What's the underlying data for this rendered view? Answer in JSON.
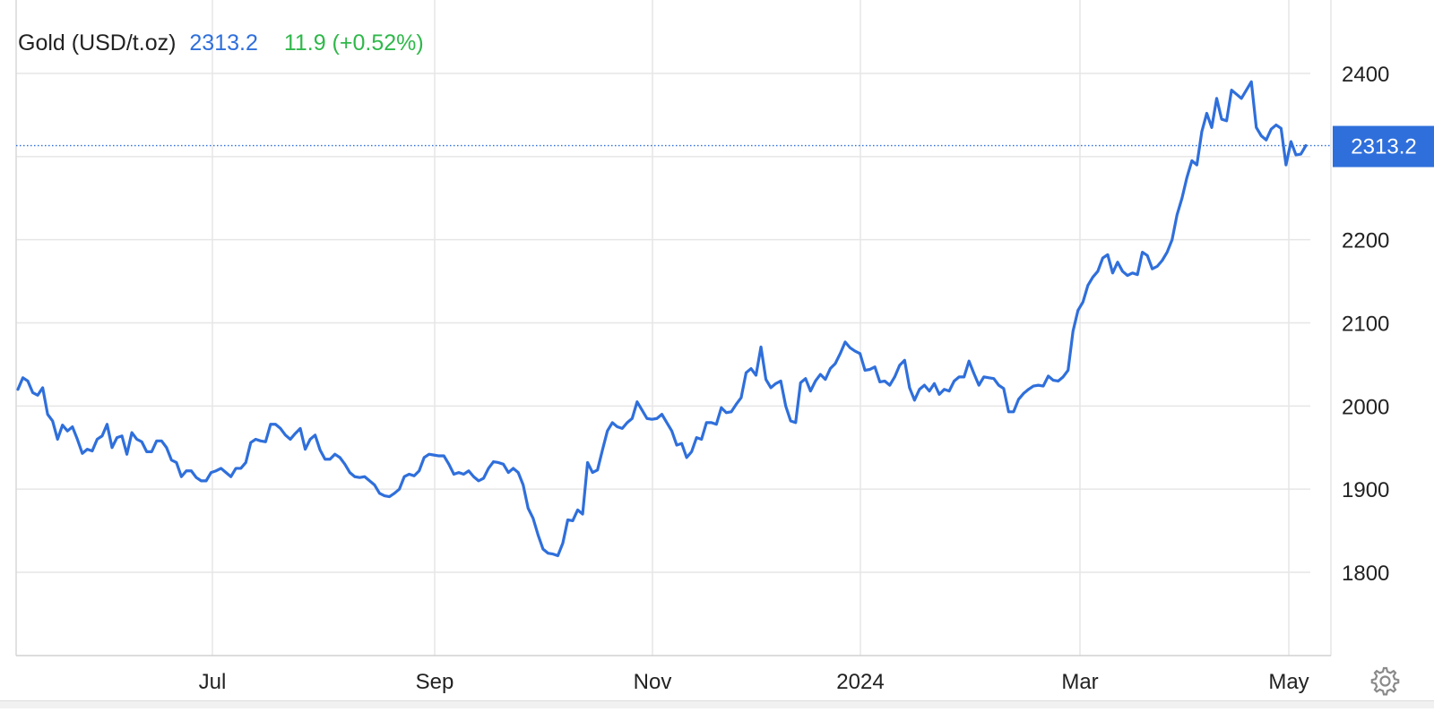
{
  "header": {
    "name": "Gold (USD/t.oz)",
    "price": "2313.2",
    "change": "11.9 (+0.52%)"
  },
  "colors": {
    "line": "#2f6fdb",
    "change_positive": "#2fb84a",
    "grid": "#e6e6e6",
    "badge": "#2f6fdb"
  },
  "icons": {
    "settings": "gear-icon"
  },
  "chart_data": {
    "type": "line",
    "x_tick_labels": [
      "Jul",
      "Sep",
      "Nov",
      "2024",
      "Mar",
      "May"
    ],
    "y_ticks": [
      1800,
      1900,
      2000,
      2100,
      2200,
      2300,
      2400
    ],
    "y_tick_labels": [
      "1800",
      "1900",
      "2000",
      "2100",
      "2200",
      "2400"
    ],
    "ylim": [
      1700,
      2440
    ],
    "last_value": 2313.2,
    "last_value_label": "2313.2",
    "grid": true,
    "series": [
      {
        "values": [
          2020,
          2034,
          2030,
          2016,
          2013,
          2022,
          1990,
          1982,
          1960,
          1977,
          1970,
          1975,
          1960,
          1943,
          1948,
          1946,
          1960,
          1964,
          1978,
          1950,
          1962,
          1964,
          1942,
          1968,
          1960,
          1957,
          1945,
          1945,
          1958,
          1958,
          1950,
          1935,
          1932,
          1915,
          1922,
          1922,
          1914,
          1910,
          1910,
          1920,
          1922,
          1925,
          1920,
          1915,
          1925,
          1925,
          1932,
          1956,
          1960,
          1958,
          1957,
          1978,
          1978,
          1973,
          1965,
          1960,
          1967,
          1973,
          1948,
          1960,
          1965,
          1947,
          1936,
          1936,
          1942,
          1938,
          1930,
          1920,
          1915,
          1914,
          1915,
          1910,
          1905,
          1895,
          1892,
          1891,
          1895,
          1900,
          1915,
          1918,
          1916,
          1922,
          1938,
          1942,
          1941,
          1940,
          1940,
          1930,
          1918,
          1920,
          1918,
          1922,
          1915,
          1910,
          1913,
          1925,
          1933,
          1932,
          1930,
          1920,
          1925,
          1920,
          1905,
          1877,
          1865,
          1845,
          1828,
          1823,
          1822,
          1820,
          1835,
          1863,
          1862,
          1875,
          1870,
          1932,
          1920,
          1923,
          1947,
          1970,
          1980,
          1975,
          1973,
          1980,
          1985,
          2005,
          1995,
          1985,
          1984,
          1985,
          1990,
          1980,
          1970,
          1953,
          1955,
          1938,
          1945,
          1962,
          1960,
          1980,
          1980,
          1978,
          1998,
          1992,
          1993,
          2002,
          2010,
          2040,
          2045,
          2037,
          2071,
          2032,
          2022,
          2027,
          2030,
          2000,
          1982,
          1980,
          2028,
          2033,
          2018,
          2030,
          2038,
          2032,
          2045,
          2051,
          2063,
          2077,
          2070,
          2066,
          2063,
          2043,
          2044,
          2047,
          2029,
          2030,
          2025,
          2035,
          2049,
          2055,
          2022,
          2007,
          2020,
          2025,
          2018,
          2027,
          2014,
          2020,
          2018,
          2030,
          2035,
          2035,
          2054,
          2039,
          2025,
          2035,
          2034,
          2033,
          2025,
          2021,
          1993,
          1993,
          2008,
          2015,
          2020,
          2024,
          2025,
          2024,
          2036,
          2031,
          2030,
          2035,
          2043,
          2090,
          2115,
          2125,
          2145,
          2155,
          2162,
          2178,
          2182,
          2160,
          2173,
          2162,
          2157,
          2160,
          2158,
          2185,
          2181,
          2165,
          2168,
          2175,
          2185,
          2200,
          2230,
          2250,
          2275,
          2295,
          2290,
          2330,
          2352,
          2335,
          2370,
          2345,
          2343,
          2380,
          2375,
          2370,
          2380,
          2390,
          2335,
          2325,
          2320,
          2333,
          2338,
          2334,
          2290,
          2318,
          2302,
          2303,
          2313.2
        ]
      }
    ]
  }
}
